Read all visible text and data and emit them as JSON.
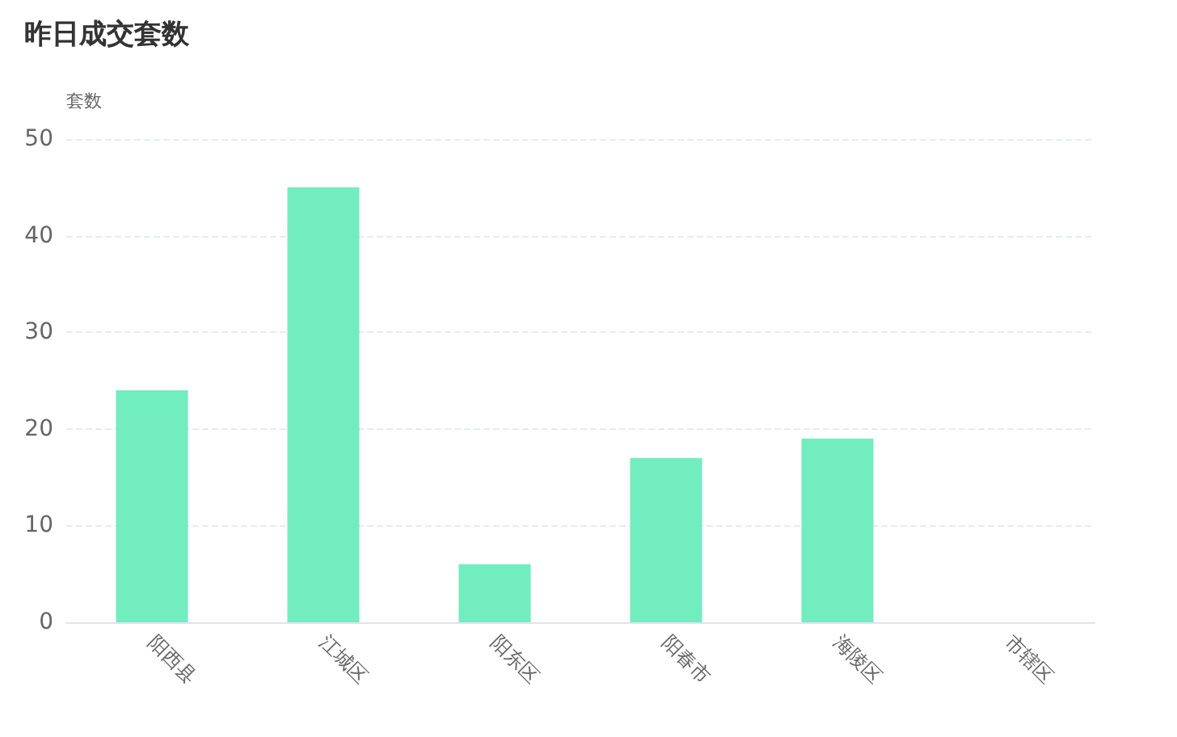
{
  "chart_data": {
    "type": "bar",
    "title": "昨日成交套数",
    "ylabel": "套数",
    "categories": [
      "阳西县",
      "江城区",
      "阳东区",
      "阳春市",
      "海陵区",
      "市辖区"
    ],
    "values": [
      24,
      45,
      6,
      17,
      19,
      0
    ],
    "color": "#72edbf",
    "ylim": [
      0,
      50
    ],
    "yticks": [
      0,
      10,
      20,
      30,
      40,
      50
    ],
    "grid": "y"
  }
}
